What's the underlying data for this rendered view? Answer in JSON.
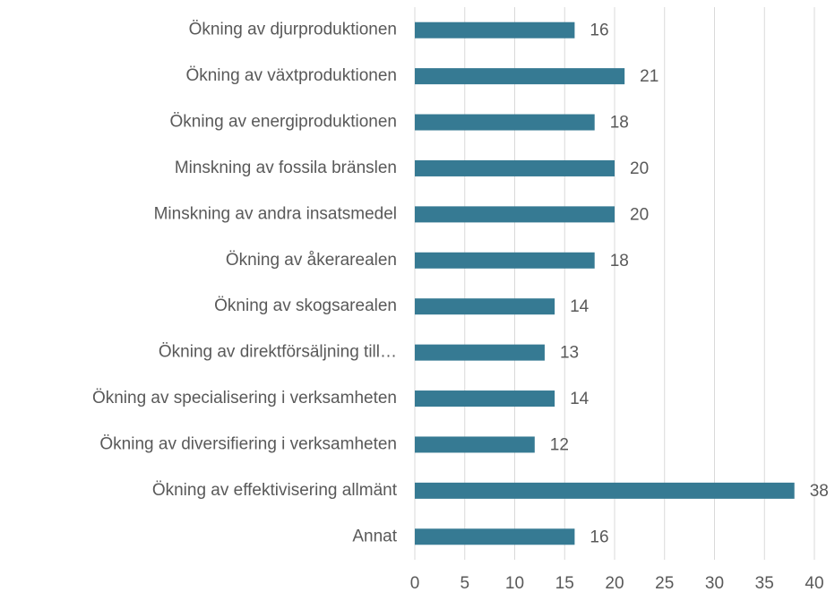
{
  "chart_data": {
    "type": "bar",
    "orientation": "horizontal",
    "categories": [
      "Ökning av djurproduktionen",
      "Ökning av växtproduktionen",
      "Ökning av energiproduktionen",
      "Minskning av fossila bränslen",
      "Minskning av andra insatsmedel",
      "Ökning av åkerarealen",
      "Ökning av skogsarealen",
      "Ökning av direktförsäljning till…",
      "Ökning av specialisering i verksamheten",
      "Ökning av diversifiering i verksamheten",
      "Ökning av effektivisering allmänt",
      "Annat"
    ],
    "values": [
      16,
      21,
      18,
      20,
      20,
      18,
      14,
      13,
      14,
      12,
      38,
      16
    ],
    "color": "#367a93",
    "xlim": [
      0,
      40
    ],
    "xticks": [
      0,
      5,
      10,
      15,
      20,
      25,
      30,
      35,
      40
    ],
    "grid": true
  }
}
